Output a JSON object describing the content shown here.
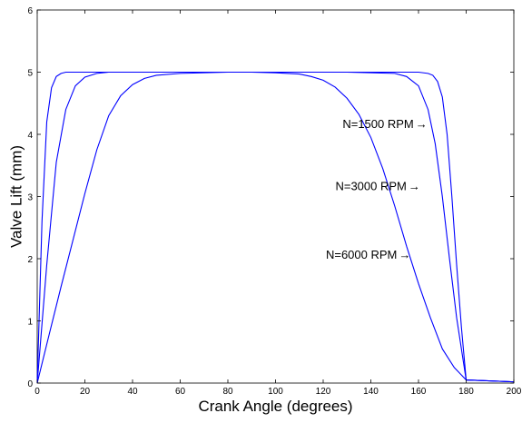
{
  "chart_data": {
    "type": "line",
    "title": "",
    "xlabel": "Crank Angle (degrees)",
    "ylabel": "Valve Lift (mm)",
    "xlim": [
      0,
      200
    ],
    "ylim": [
      0,
      6
    ],
    "xticks": [
      0,
      20,
      40,
      60,
      80,
      100,
      120,
      140,
      160,
      180,
      200
    ],
    "yticks": [
      0,
      1,
      2,
      3,
      4,
      5,
      6
    ],
    "grid": false,
    "legend": "none",
    "line_color": "#0000ff",
    "series": [
      {
        "x": [
          0,
          2,
          4,
          6,
          8,
          10,
          12,
          15,
          20,
          30,
          50,
          90,
          130,
          150,
          160,
          164,
          166,
          168,
          170,
          172,
          174,
          176,
          178,
          180,
          200
        ],
        "y": [
          0,
          2.6,
          4.2,
          4.75,
          4.93,
          4.98,
          5.0,
          5.0,
          5.0,
          5.0,
          5.0,
          5.0,
          5.0,
          5.0,
          5.0,
          4.98,
          4.95,
          4.85,
          4.6,
          4.0,
          3.0,
          1.9,
          0.9,
          0.05,
          0.02
        ]
      },
      {
        "x": [
          0,
          4,
          8,
          12,
          16,
          20,
          25,
          30,
          40,
          60,
          90,
          130,
          150,
          155,
          160,
          164,
          167,
          170,
          173,
          176,
          180,
          200
        ],
        "y": [
          0,
          1.9,
          3.55,
          4.4,
          4.78,
          4.92,
          4.98,
          5.0,
          5.0,
          5.0,
          5.0,
          5.0,
          4.98,
          4.93,
          4.78,
          4.4,
          3.85,
          3.0,
          2.0,
          1.05,
          0.05,
          0.02
        ]
      },
      {
        "x": [
          0,
          5,
          10,
          15,
          20,
          25,
          30,
          35,
          40,
          45,
          50,
          60,
          80,
          90,
          100,
          110,
          115,
          120,
          125,
          130,
          135,
          140,
          145,
          150,
          155,
          160,
          165,
          170,
          175,
          180,
          200
        ],
        "y": [
          0,
          0.78,
          1.55,
          2.3,
          3.05,
          3.75,
          4.3,
          4.62,
          4.8,
          4.9,
          4.95,
          4.98,
          5.0,
          5.0,
          4.99,
          4.97,
          4.93,
          4.87,
          4.76,
          4.58,
          4.32,
          3.95,
          3.45,
          2.85,
          2.2,
          1.6,
          1.05,
          0.55,
          0.25,
          0.05,
          0.02
        ]
      }
    ],
    "annotations": [
      {
        "text": "N=1500 RPM",
        "x": 158,
        "y": 4.1,
        "arrow": "→"
      },
      {
        "text": "N=3000 RPM",
        "x": 155,
        "y": 3.1,
        "arrow": "→"
      },
      {
        "text": "N=6000 RPM",
        "x": 151,
        "y": 2.0,
        "arrow": "→"
      }
    ]
  }
}
